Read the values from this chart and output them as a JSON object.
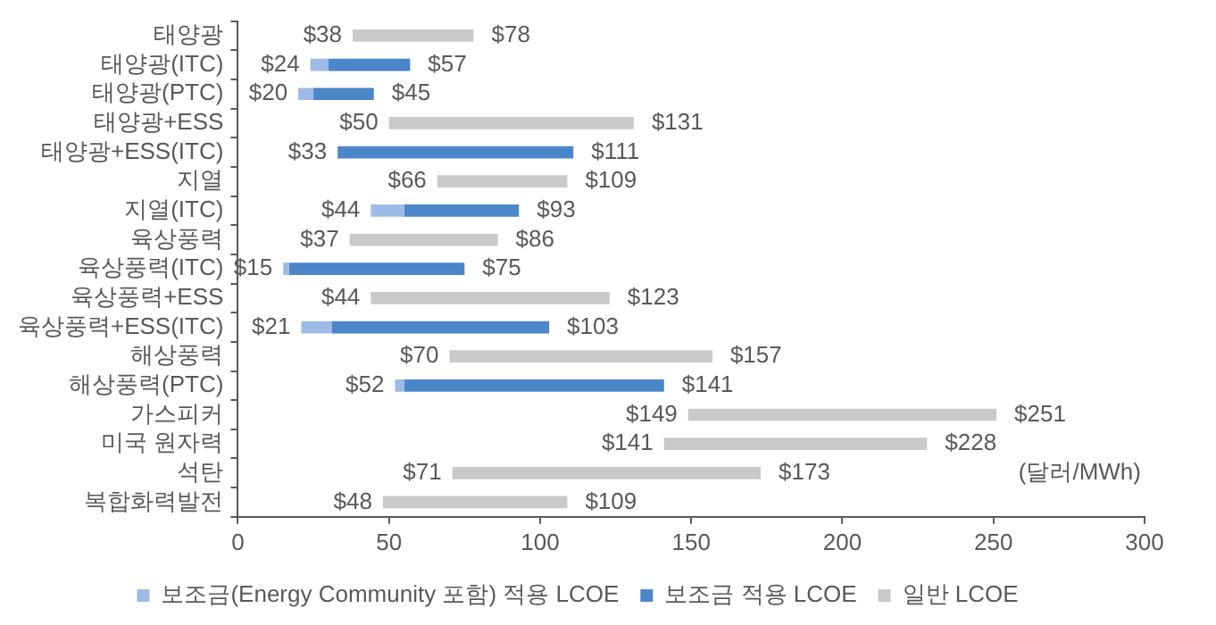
{
  "chart_data": {
    "type": "bar",
    "orientation": "horizontal",
    "categories": [
      "태양광",
      "태양광(ITC)",
      "태양광(PTC)",
      "태양광+ESS",
      "태양광+ESS(ITC)",
      "지열",
      "지열(ITC)",
      "육상풍력",
      "육상풍력(ITC)",
      "육상풍력+ESS",
      "육상풍력+ESS(ITC)",
      "해상풍력",
      "해상풍력(PTC)",
      "가스피커",
      "미국 원자력",
      "석탄",
      "복합화력발전"
    ],
    "series": [
      {
        "name": "보조금(Energy Community 포함) 적용 LCOE",
        "color": "#9dbbe6",
        "base": [
          null,
          24,
          20,
          null,
          null,
          null,
          44,
          null,
          15,
          null,
          21,
          null,
          52,
          null,
          null,
          null,
          null
        ],
        "values": [
          null,
          6,
          5,
          null,
          null,
          null,
          11,
          null,
          2,
          null,
          10,
          null,
          3,
          null,
          null,
          null,
          null
        ]
      },
      {
        "name": "보조금 적용 LCOE",
        "color": "#4a86c8",
        "base": [
          null,
          30,
          25,
          null,
          33,
          null,
          55,
          null,
          17,
          null,
          31,
          null,
          55,
          null,
          null,
          null,
          null
        ],
        "values": [
          null,
          27,
          20,
          null,
          78,
          null,
          38,
          null,
          58,
          null,
          72,
          null,
          86,
          null,
          null,
          null,
          null
        ]
      },
      {
        "name": "일반 LCOE",
        "color": "#c9c9c9",
        "base": [
          38,
          null,
          null,
          50,
          null,
          66,
          null,
          37,
          null,
          44,
          null,
          70,
          null,
          149,
          141,
          71,
          48
        ],
        "values": [
          40,
          null,
          null,
          81,
          null,
          43,
          null,
          49,
          null,
          79,
          null,
          87,
          null,
          102,
          87,
          102,
          61
        ]
      }
    ],
    "xlim": [
      0,
      300
    ],
    "xticks": [
      0,
      50,
      100,
      150,
      200,
      250,
      300
    ],
    "grid": false,
    "legend": "bottom",
    "annotations": [
      {
        "text": "$38",
        "x": 38,
        "y": "태양광"
      },
      {
        "text": "$78",
        "x": 78,
        "y": "태양광"
      },
      {
        "text": "$24",
        "x": 24,
        "y": "태양광(ITC)"
      },
      {
        "text": "$57",
        "x": 57,
        "y": "태양광(ITC)"
      },
      {
        "text": "$20",
        "x": 20,
        "y": "태양광(PTC)"
      },
      {
        "text": "$45",
        "x": 45,
        "y": "태양광(PTC)"
      },
      {
        "text": "$50",
        "x": 50,
        "y": "태양광+ESS"
      },
      {
        "text": "$131",
        "x": 131,
        "y": "태양광+ESS"
      },
      {
        "text": "$33",
        "x": 33,
        "y": "태양광+ESS(ITC)"
      },
      {
        "text": "$111",
        "x": 111,
        "y": "태양광+ESS(ITC)"
      },
      {
        "text": "$66",
        "x": 66,
        "y": "지열"
      },
      {
        "text": "$109",
        "x": 109,
        "y": "지열"
      },
      {
        "text": "$44",
        "x": 44,
        "y": "지열(ITC)"
      },
      {
        "text": "$93",
        "x": 93,
        "y": "지열(ITC)"
      },
      {
        "text": "$37",
        "x": 37,
        "y": "육상풍력"
      },
      {
        "text": "$86",
        "x": 86,
        "y": "육상풍력"
      },
      {
        "text": "$15",
        "x": 15,
        "y": "육상풍력(ITC)"
      },
      {
        "text": "$75",
        "x": 75,
        "y": "육상풍력(ITC)"
      },
      {
        "text": "$44",
        "x": 44,
        "y": "육상풍력+ESS"
      },
      {
        "text": "$123",
        "x": 123,
        "y": "육상풍력+ESS"
      },
      {
        "text": "$21",
        "x": 21,
        "y": "육상풍력+ESS(ITC)"
      },
      {
        "text": "$103",
        "x": 103,
        "y": "육상풍력+ESS(ITC)"
      },
      {
        "text": "$70",
        "x": 70,
        "y": "해상풍력"
      },
      {
        "text": "$157",
        "x": 157,
        "y": "해상풍력"
      },
      {
        "text": "$52",
        "x": 52,
        "y": "해상풍력(PTC)"
      },
      {
        "text": "$141",
        "x": 141,
        "y": "해상풍력(PTC)"
      },
      {
        "text": "$149",
        "x": 149,
        "y": "가스피커"
      },
      {
        "text": "$251",
        "x": 251,
        "y": "가스피커"
      },
      {
        "text": "$141",
        "x": 141,
        "y": "미국 원자력"
      },
      {
        "text": "$228",
        "x": 228,
        "y": "미국 원자력"
      },
      {
        "text": "$71",
        "x": 71,
        "y": "석탄"
      },
      {
        "text": "$173",
        "x": 173,
        "y": "석탄"
      },
      {
        "text": "$48",
        "x": 48,
        "y": "복합화력발전"
      },
      {
        "text": "$109",
        "x": 109,
        "y": "복합화력발전"
      },
      "(달러/MWh)"
    ]
  }
}
